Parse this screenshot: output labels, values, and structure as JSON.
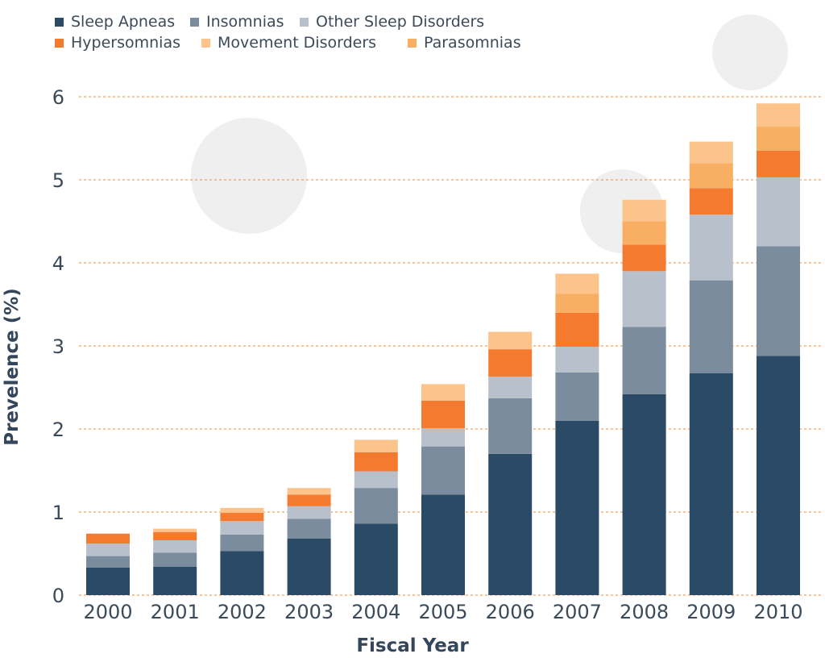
{
  "chart_data": {
    "type": "bar",
    "stacked": true,
    "title": "",
    "xlabel": "Fiscal Year",
    "ylabel": "Prevelence (%)",
    "ylim": [
      0,
      6
    ],
    "yticks": [
      0,
      1,
      2,
      3,
      4,
      5,
      6
    ],
    "grid": true,
    "legend_position": "top-left",
    "categories": [
      "2000",
      "2001",
      "2002",
      "2003",
      "2004",
      "2005",
      "2006",
      "2007",
      "2008",
      "2009",
      "2010"
    ],
    "series": [
      {
        "name": "Sleep Apneas",
        "color": "#2b4a66",
        "values": [
          0.33,
          0.34,
          0.53,
          0.68,
          0.86,
          1.21,
          1.7,
          2.1,
          2.42,
          2.67,
          2.88
        ]
      },
      {
        "name": "Insomnias",
        "color": "#7a8c9d",
        "values": [
          0.14,
          0.17,
          0.2,
          0.24,
          0.43,
          0.58,
          0.67,
          0.58,
          0.81,
          1.12,
          1.32
        ]
      },
      {
        "name": "Other Sleep Disorders",
        "color": "#b8c1cb",
        "values": [
          0.15,
          0.15,
          0.16,
          0.15,
          0.2,
          0.22,
          0.26,
          0.31,
          0.67,
          0.79,
          0.83
        ]
      },
      {
        "name": "Hypersomnias",
        "color": "#f47a30",
        "values": [
          0.12,
          0.1,
          0.1,
          0.14,
          0.23,
          0.33,
          0.33,
          0.41,
          0.32,
          0.32,
          0.32
        ]
      },
      {
        "name": "Parasomnias",
        "color": "#f8ae63",
        "values": [
          0.0,
          0.0,
          0.0,
          0.0,
          0.0,
          0.0,
          0.0,
          0.23,
          0.28,
          0.3,
          0.29
        ]
      },
      {
        "name": "Movement Disorders",
        "color": "#fcc48b",
        "values": [
          0.0,
          0.04,
          0.06,
          0.08,
          0.15,
          0.2,
          0.21,
          0.24,
          0.26,
          0.26,
          0.28
        ]
      }
    ],
    "legend_order": [
      "Sleep Apneas",
      "Insomnias",
      "Other Sleep Disorders",
      "Hypersomnias",
      "Movement Disorders",
      "Parasomnias"
    ]
  }
}
